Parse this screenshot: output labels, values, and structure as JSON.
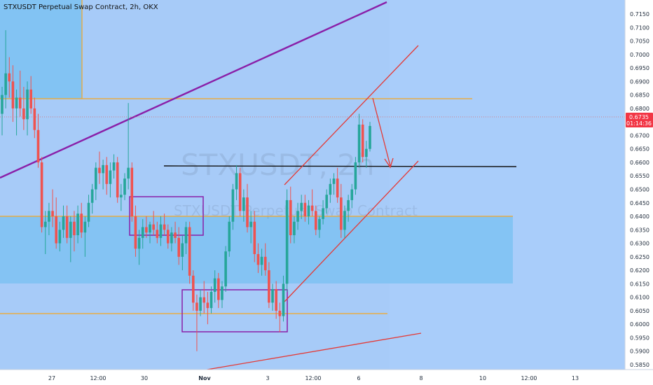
{
  "header": {
    "title": "STXUSDT Perpetual Swap Contract, 2h, OKX"
  },
  "watermark": {
    "symbol": "STXUSDT, 2h",
    "name": "STXUSDT Perpetual Swap Contract"
  },
  "price_badge": {
    "price": "0.6735",
    "countdown": "01:14:36"
  },
  "chart_data": {
    "type": "candlestick",
    "title": "STXUSDT Perpetual Swap Contract, 2h, OKX",
    "y_axis": {
      "ticks": [
        "0.7150",
        "0.7100",
        "0.7050",
        "0.7000",
        "0.6950",
        "0.6900",
        "0.6850",
        "0.6800",
        "0.6750",
        "0.6700",
        "0.6650",
        "0.6600",
        "0.6550",
        "0.6500",
        "0.6450",
        "0.6400",
        "0.6350",
        "0.6300",
        "0.6250",
        "0.6200",
        "0.6150",
        "0.6100",
        "0.6050",
        "0.6000",
        "0.5950",
        "0.5900",
        "0.5850"
      ],
      "range": [
        0.583,
        0.717
      ]
    },
    "x_axis": {
      "ticks": [
        "27",
        "12:00",
        "30",
        "Nov",
        "3",
        "12:00",
        "6",
        "8",
        "10",
        "12:00",
        "13"
      ]
    },
    "candles": [
      [
        0.678,
        0.688,
        0.67,
        0.685
      ],
      [
        0.685,
        0.709,
        0.68,
        0.693
      ],
      [
        0.693,
        0.699,
        0.684,
        0.69
      ],
      [
        0.69,
        0.696,
        0.675,
        0.68
      ],
      [
        0.68,
        0.687,
        0.67,
        0.684
      ],
      [
        0.684,
        0.694,
        0.677,
        0.68
      ],
      [
        0.68,
        0.688,
        0.672,
        0.676
      ],
      [
        0.676,
        0.69,
        0.67,
        0.687
      ],
      [
        0.687,
        0.692,
        0.678,
        0.68
      ],
      [
        0.68,
        0.684,
        0.669,
        0.672
      ],
      [
        0.672,
        0.678,
        0.658,
        0.66
      ],
      [
        0.66,
        0.662,
        0.634,
        0.636
      ],
      [
        0.636,
        0.642,
        0.626,
        0.638
      ],
      [
        0.638,
        0.645,
        0.633,
        0.642
      ],
      [
        0.642,
        0.65,
        0.636,
        0.64
      ],
      [
        0.64,
        0.647,
        0.628,
        0.63
      ],
      [
        0.63,
        0.638,
        0.627,
        0.635
      ],
      [
        0.635,
        0.644,
        0.632,
        0.64
      ],
      [
        0.64,
        0.644,
        0.63,
        0.632
      ],
      [
        0.632,
        0.64,
        0.623,
        0.638
      ],
      [
        0.638,
        0.642,
        0.627,
        0.633
      ],
      [
        0.633,
        0.644,
        0.63,
        0.641
      ],
      [
        0.641,
        0.645,
        0.632,
        0.634
      ],
      [
        0.634,
        0.64,
        0.625,
        0.638
      ],
      [
        0.638,
        0.648,
        0.636,
        0.645
      ],
      [
        0.645,
        0.652,
        0.641,
        0.65
      ],
      [
        0.65,
        0.66,
        0.646,
        0.658
      ],
      [
        0.658,
        0.664,
        0.652,
        0.656
      ],
      [
        0.656,
        0.661,
        0.65,
        0.659
      ],
      [
        0.659,
        0.662,
        0.648,
        0.652
      ],
      [
        0.652,
        0.66,
        0.647,
        0.657
      ],
      [
        0.657,
        0.663,
        0.654,
        0.66
      ],
      [
        0.66,
        0.662,
        0.645,
        0.647
      ],
      [
        0.647,
        0.652,
        0.642,
        0.648
      ],
      [
        0.648,
        0.656,
        0.646,
        0.654
      ],
      [
        0.654,
        0.682,
        0.65,
        0.658
      ],
      [
        0.658,
        0.66,
        0.638,
        0.64
      ],
      [
        0.64,
        0.644,
        0.625,
        0.628
      ],
      [
        0.628,
        0.635,
        0.622,
        0.632
      ],
      [
        0.632,
        0.639,
        0.628,
        0.636
      ],
      [
        0.636,
        0.64,
        0.632,
        0.634
      ],
      [
        0.634,
        0.638,
        0.63,
        0.637
      ],
      [
        0.637,
        0.642,
        0.633,
        0.635
      ],
      [
        0.635,
        0.638,
        0.63,
        0.632
      ],
      [
        0.632,
        0.64,
        0.629,
        0.637
      ],
      [
        0.637,
        0.641,
        0.633,
        0.635
      ],
      [
        0.635,
        0.637,
        0.628,
        0.63
      ],
      [
        0.63,
        0.636,
        0.627,
        0.634
      ],
      [
        0.634,
        0.638,
        0.63,
        0.632
      ],
      [
        0.632,
        0.636,
        0.622,
        0.625
      ],
      [
        0.625,
        0.633,
        0.62,
        0.63
      ],
      [
        0.63,
        0.638,
        0.626,
        0.636
      ],
      [
        0.636,
        0.638,
        0.615,
        0.618
      ],
      [
        0.618,
        0.62,
        0.605,
        0.608
      ],
      [
        0.608,
        0.611,
        0.59,
        0.605
      ],
      [
        0.605,
        0.613,
        0.603,
        0.61
      ],
      [
        0.61,
        0.616,
        0.604,
        0.608
      ],
      [
        0.608,
        0.612,
        0.6,
        0.606
      ],
      [
        0.606,
        0.614,
        0.604,
        0.612
      ],
      [
        0.612,
        0.62,
        0.608,
        0.617
      ],
      [
        0.617,
        0.619,
        0.606,
        0.609
      ],
      [
        0.609,
        0.616,
        0.606,
        0.614
      ],
      [
        0.614,
        0.629,
        0.612,
        0.627
      ],
      [
        0.627,
        0.64,
        0.625,
        0.638
      ],
      [
        0.638,
        0.652,
        0.635,
        0.65
      ],
      [
        0.65,
        0.659,
        0.646,
        0.656
      ],
      [
        0.656,
        0.658,
        0.64,
        0.642
      ],
      [
        0.642,
        0.65,
        0.638,
        0.647
      ],
      [
        0.647,
        0.652,
        0.634,
        0.636
      ],
      [
        0.636,
        0.642,
        0.63,
        0.638
      ],
      [
        0.638,
        0.642,
        0.623,
        0.626
      ],
      [
        0.626,
        0.63,
        0.619,
        0.622
      ],
      [
        0.622,
        0.628,
        0.618,
        0.625
      ],
      [
        0.625,
        0.63,
        0.618,
        0.62
      ],
      [
        0.62,
        0.623,
        0.606,
        0.608
      ],
      [
        0.608,
        0.615,
        0.605,
        0.613
      ],
      [
        0.613,
        0.616,
        0.602,
        0.605
      ],
      [
        0.605,
        0.608,
        0.597,
        0.603
      ],
      [
        0.603,
        0.618,
        0.601,
        0.615
      ],
      [
        0.615,
        0.65,
        0.612,
        0.646
      ],
      [
        0.646,
        0.651,
        0.63,
        0.633
      ],
      [
        0.633,
        0.64,
        0.63,
        0.638
      ],
      [
        0.638,
        0.645,
        0.635,
        0.642
      ],
      [
        0.642,
        0.648,
        0.639,
        0.645
      ],
      [
        0.645,
        0.648,
        0.638,
        0.64
      ],
      [
        0.64,
        0.646,
        0.637,
        0.644
      ],
      [
        0.644,
        0.65,
        0.64,
        0.642
      ],
      [
        0.642,
        0.644,
        0.633,
        0.635
      ],
      [
        0.635,
        0.64,
        0.632,
        0.639
      ],
      [
        0.639,
        0.646,
        0.637,
        0.643
      ],
      [
        0.643,
        0.65,
        0.641,
        0.648
      ],
      [
        0.648,
        0.654,
        0.645,
        0.652
      ],
      [
        0.652,
        0.656,
        0.648,
        0.654
      ],
      [
        0.654,
        0.658,
        0.645,
        0.647
      ],
      [
        0.647,
        0.652,
        0.632,
        0.635
      ],
      [
        0.635,
        0.644,
        0.632,
        0.642
      ],
      [
        0.642,
        0.648,
        0.638,
        0.646
      ],
      [
        0.646,
        0.652,
        0.643,
        0.65
      ],
      [
        0.65,
        0.662,
        0.648,
        0.66
      ],
      [
        0.66,
        0.678,
        0.658,
        0.674
      ],
      [
        0.674,
        0.676,
        0.66,
        0.662
      ],
      [
        0.662,
        0.668,
        0.658,
        0.665
      ],
      [
        0.665,
        0.675,
        0.664,
        0.6735
      ]
    ]
  }
}
